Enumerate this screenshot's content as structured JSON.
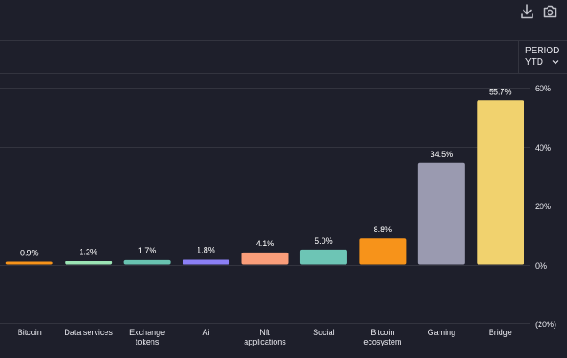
{
  "toolbar": {
    "download_icon": "download-icon",
    "camera_icon": "camera-icon"
  },
  "period": {
    "label": "PERIOD",
    "value": "YTD",
    "chevron_icon": "chevron-down-icon"
  },
  "chart_data": {
    "type": "bar",
    "categories": [
      [
        "Bitcoin"
      ],
      [
        "Data services"
      ],
      [
        "Exchange",
        "tokens"
      ],
      [
        "Ai"
      ],
      [
        "Nft",
        "applications"
      ],
      [
        "Social"
      ],
      [
        "Bitcoin",
        "ecosystem"
      ],
      [
        "Gaming"
      ],
      [
        "Bridge"
      ]
    ],
    "values": [
      0.9,
      1.2,
      1.7,
      1.8,
      4.1,
      5.0,
      8.8,
      34.5,
      55.7
    ],
    "value_labels": [
      "0.9%",
      "1.2%",
      "1.7%",
      "1.8%",
      "4.1%",
      "5.0%",
      "8.8%",
      "34.5%",
      "55.7%"
    ],
    "colors": [
      "#f7931a",
      "#9be3b4",
      "#68c2b0",
      "#8b7ff5",
      "#fa9d7a",
      "#6dc5b5",
      "#f7931a",
      "#9a9ab0",
      "#f1d26e"
    ],
    "ylim": [
      -20,
      60
    ],
    "yticks": [
      60,
      40,
      20,
      0,
      -20
    ],
    "ytick_labels": [
      "60%",
      "40%",
      "20%",
      "0%",
      "(20%)"
    ],
    "gridlines": true,
    "y_axis_position": "right"
  }
}
